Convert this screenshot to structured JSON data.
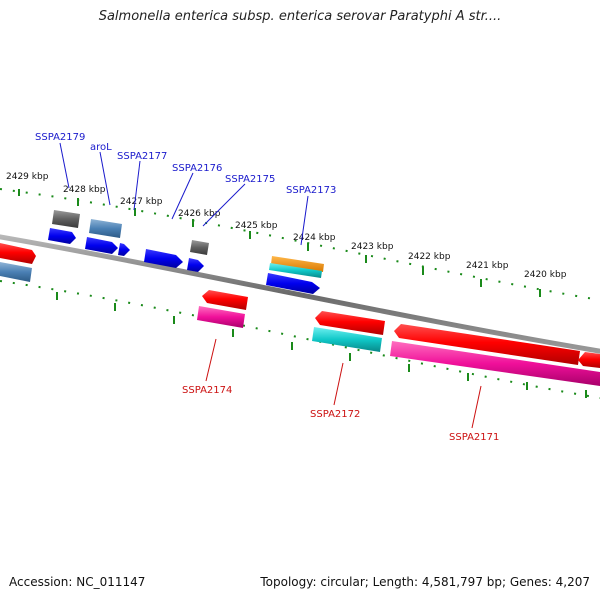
{
  "title": "Salmonella enterica subsp. enterica serovar Paratyphi A str....",
  "footer": {
    "accession": "Accession: NC_011147",
    "summary": "Topology: circular; Length: 4,581,797 bp; Genes: 4,207"
  },
  "colors": {
    "backbone": "#8a8a8a",
    "ticks": "#1a8a1a",
    "forward_label": "#1a1acc",
    "reverse_label": "#cc1111"
  },
  "scale": {
    "labels": [
      "2429 kbp",
      "2428 kbp",
      "2427 kbp",
      "2426 kbp",
      "2425 kbp",
      "2424 kbp",
      "2423 kbp",
      "2422 kbp",
      "2421 kbp",
      "2420 kbp"
    ]
  },
  "gene_labels": {
    "forward": [
      "SSPA2179",
      "aroL",
      "SSPA2177",
      "SSPA2176",
      "SSPA2175",
      "SSPA2173"
    ],
    "reverse": [
      "SSPA2174",
      "SSPA2172",
      "SSPA2171"
    ]
  }
}
